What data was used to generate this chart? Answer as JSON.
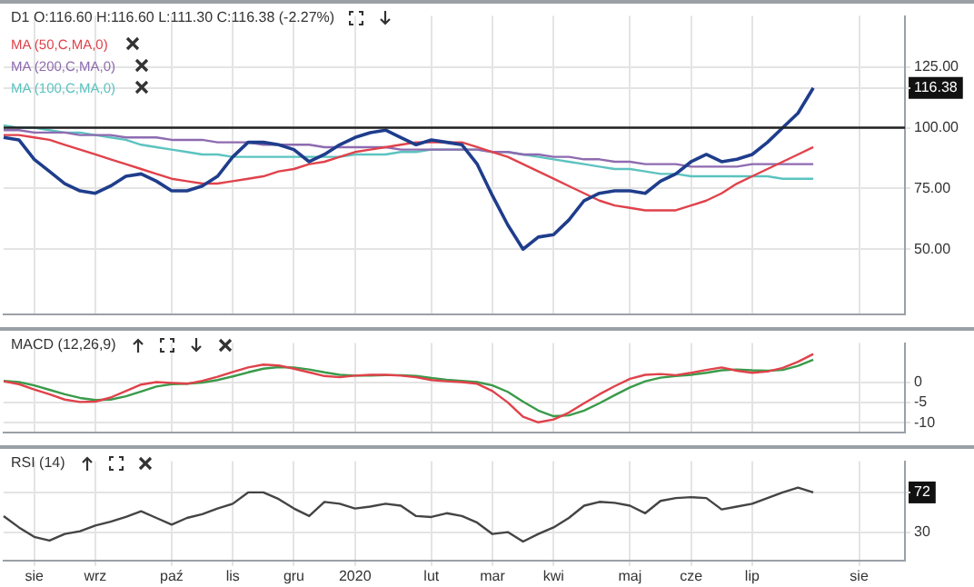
{
  "chart_data": [
    {
      "type": "line",
      "title": "D1 O:116.60 H:116.60 L:111.30 C:116.38 (-2.27%)",
      "categories": [
        null,
        null,
        null,
        null,
        null,
        null,
        null,
        null,
        null,
        null,
        null,
        null,
        null,
        null,
        null,
        null,
        null,
        null,
        null,
        null,
        null,
        null,
        null,
        null,
        null,
        null,
        null,
        null,
        null,
        null,
        null,
        null,
        null,
        null,
        null,
        null,
        null,
        null,
        null,
        null,
        null,
        null,
        null,
        null,
        null,
        null,
        null,
        null,
        null,
        null,
        null,
        null,
        null,
        null,
        null,
        null,
        null,
        null,
        null,
        null
      ],
      "series": [
        {
          "color": "#1f3d8c",
          "values": [
            96,
            95,
            87,
            82,
            77,
            74,
            73,
            76,
            80,
            81,
            78,
            74,
            74,
            76,
            80,
            88,
            94,
            94,
            93,
            91,
            86,
            89,
            93,
            96,
            98,
            99,
            96,
            93,
            95,
            94,
            93,
            85,
            72,
            60,
            50,
            55,
            56,
            62,
            70,
            73,
            74,
            74,
            73,
            78,
            81,
            86,
            89,
            86,
            87,
            89,
            94,
            100,
            106,
            116.38,
            null,
            null,
            null,
            null,
            null,
            null
          ]
        },
        {
          "name": "MA (50,C,MA,0)",
          "color": "#e0424b",
          "values": [
            97,
            97,
            96,
            95,
            93,
            91,
            89,
            87,
            85,
            83,
            81,
            79,
            78,
            77,
            77,
            78,
            79,
            80,
            82,
            83,
            85,
            86,
            88,
            90,
            91,
            92,
            93,
            94,
            94,
            94,
            94,
            92,
            90,
            88,
            85,
            82,
            79,
            76,
            73,
            70,
            68,
            67,
            66,
            66,
            66,
            68,
            70,
            73,
            77,
            80,
            83,
            86,
            89,
            92,
            null,
            null,
            null,
            null,
            null,
            null
          ]
        },
        {
          "name": "MA (200,C,MA,0)",
          "color": "#8e6bb0",
          "values": [
            99,
            99,
            98,
            98,
            98,
            97,
            97,
            97,
            96,
            96,
            96,
            95,
            95,
            95,
            94,
            94,
            94,
            93,
            93,
            93,
            93,
            92,
            92,
            92,
            92,
            92,
            91,
            91,
            91,
            91,
            91,
            91,
            90,
            90,
            89,
            89,
            88,
            88,
            87,
            87,
            86,
            86,
            85,
            85,
            85,
            84,
            84,
            84,
            84,
            85,
            85,
            85,
            85,
            85,
            null,
            null,
            null,
            null,
            null,
            null
          ]
        },
        {
          "name": "MA (100,C,MA,0)",
          "color": "#5cc3c0",
          "values": [
            101,
            100,
            100,
            99,
            98,
            98,
            97,
            96,
            95,
            93,
            92,
            91,
            90,
            89,
            89,
            88,
            88,
            88,
            88,
            88,
            88,
            88,
            88,
            89,
            89,
            89,
            90,
            90,
            91,
            91,
            91,
            91,
            90,
            90,
            89,
            88,
            87,
            86,
            85,
            84,
            83,
            83,
            82,
            81,
            81,
            80,
            80,
            80,
            80,
            80,
            80,
            79,
            79,
            79,
            null,
            null,
            null,
            null,
            null,
            null
          ]
        }
      ],
      "ylim": [
        23,
        146
      ],
      "yticks": [
        {
          "value": 125,
          "label": "125.00"
        },
        {
          "value": 116.38,
          "label": "116.38"
        },
        {
          "value": 100,
          "label": "100.00"
        },
        {
          "value": 75,
          "label": "75.00"
        },
        {
          "value": 50,
          "label": "50.00"
        }
      ],
      "ref_lines": [
        {
          "axis": "y",
          "value": 100,
          "color": "#222222"
        }
      ],
      "grid": true,
      "legend": "top left",
      "marker": "none",
      "line_style": "solid",
      "tick_labels": "y"
    },
    {
      "type": "line",
      "title": "MACD (12,26,9)",
      "categories": [
        null,
        null,
        null,
        null,
        null,
        null,
        null,
        null,
        null,
        null,
        null,
        null,
        null,
        null,
        null,
        null,
        null,
        null,
        null,
        null,
        null,
        null,
        null,
        null,
        null,
        null,
        null,
        null,
        null,
        null,
        null,
        null,
        null,
        null,
        null,
        null,
        null,
        null,
        null,
        null,
        null,
        null,
        null,
        null,
        null,
        null,
        null,
        null,
        null,
        null,
        null,
        null,
        null,
        null,
        null,
        null,
        null,
        null,
        null,
        null
      ],
      "series": [
        {
          "color": "#e0424b",
          "values": [
            0.2,
            -0.5,
            -1.8,
            -3,
            -4.3,
            -4.9,
            -4.8,
            -3.8,
            -2.2,
            -0.6,
            0,
            -0.2,
            -0.4,
            0.3,
            1.3,
            2.5,
            3.6,
            4.3,
            4.1,
            3.3,
            2.4,
            1.5,
            1.2,
            1.6,
            1.8,
            1.8,
            1.6,
            1.2,
            0.5,
            0.2,
            0,
            -0.4,
            -2.2,
            -5,
            -8.5,
            -9.9,
            -9.2,
            -7.5,
            -5.2,
            -3,
            -1,
            0.8,
            1.8,
            2,
            1.7,
            2.3,
            3,
            3.6,
            2.8,
            2.3,
            2.6,
            3.5,
            5,
            6.9,
            null,
            null,
            null,
            null,
            null,
            null
          ]
        },
        {
          "color": "#3a9a4a",
          "values": [
            0.3,
            0,
            -0.8,
            -1.9,
            -3,
            -3.9,
            -4.4,
            -4.3,
            -3.5,
            -2.3,
            -1.1,
            -0.5,
            -0.4,
            -0.1,
            0.5,
            1.4,
            2.4,
            3.3,
            3.7,
            3.6,
            3.1,
            2.4,
            1.8,
            1.6,
            1.6,
            1.7,
            1.7,
            1.5,
            1,
            0.6,
            0.3,
            0,
            -0.8,
            -2.4,
            -4.8,
            -7,
            -8.4,
            -8.2,
            -7,
            -5.2,
            -3.2,
            -1.3,
            0.2,
            1.1,
            1.5,
            1.8,
            2.3,
            2.9,
            3.1,
            2.9,
            2.8,
            3,
            4,
            5.5,
            null,
            null,
            null,
            null,
            null,
            null
          ]
        }
      ],
      "ylim": [
        -12.5,
        9.6
      ],
      "yticks": [
        0,
        -5,
        -10
      ],
      "grid": true,
      "marker": "none",
      "line_style": "solid",
      "tick_labels": "y"
    },
    {
      "type": "line",
      "title": "RSI (14)",
      "categories": [
        null,
        null,
        "sie",
        null,
        null,
        null,
        "wrz",
        null,
        null,
        null,
        null,
        "paź",
        null,
        null,
        null,
        "lis",
        null,
        null,
        null,
        "gru",
        null,
        null,
        null,
        "2020",
        null,
        null,
        null,
        null,
        "lut",
        null,
        null,
        null,
        "mar",
        null,
        null,
        null,
        "kwi",
        null,
        null,
        null,
        null,
        "maj",
        null,
        null,
        null,
        "cze",
        null,
        null,
        null,
        "lip",
        null,
        null,
        null,
        null,
        null,
        null,
        "sie",
        null,
        null,
        null
      ],
      "series": [
        {
          "color": "#444444",
          "values": [
            47,
            35,
            25,
            21,
            28,
            31,
            37,
            41,
            46,
            52,
            45,
            38,
            45,
            49,
            55,
            60,
            72,
            72,
            65,
            55,
            47,
            62,
            60,
            55,
            57,
            60,
            58,
            47,
            46,
            50,
            47,
            40,
            28,
            30,
            20,
            28,
            35,
            45,
            58,
            62,
            61,
            58,
            50,
            63,
            66,
            67,
            66,
            54,
            57,
            60,
            66,
            72,
            77,
            72,
            null,
            null,
            null,
            null,
            null,
            null
          ]
        }
      ],
      "ylim": [
        0,
        105
      ],
      "yticks": [
        72,
        30
      ],
      "grid": true,
      "marker": "none",
      "line_style": "solid"
    }
  ]
}
